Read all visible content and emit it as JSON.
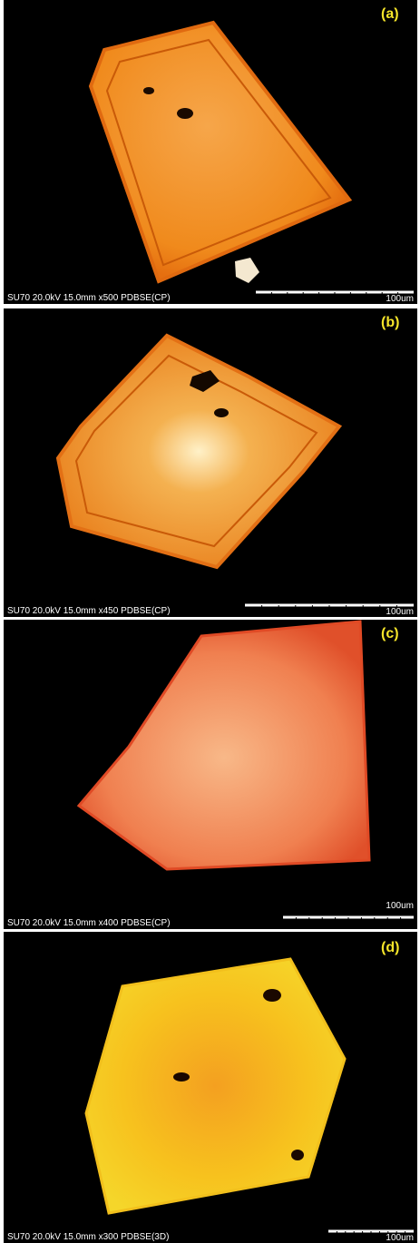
{
  "panels": [
    {
      "label": "(a)",
      "caption": "SU70 20.0kV 15.0mm x500 PDBSE(CP)",
      "scale_label": "100um"
    },
    {
      "label": "(b)",
      "caption": "SU70 20.0kV 15.0mm x450 PDBSE(CP)",
      "scale_label": "100um"
    },
    {
      "label": "(c)",
      "caption": "SU70 20.0kV 15.0mm x400 PDBSE(CP)",
      "scale_label": "100um"
    },
    {
      "label": "(d)",
      "caption": "SU70 20.0kV 15.0mm x300 PDBSE(3D)",
      "scale_label": "100um"
    }
  ]
}
